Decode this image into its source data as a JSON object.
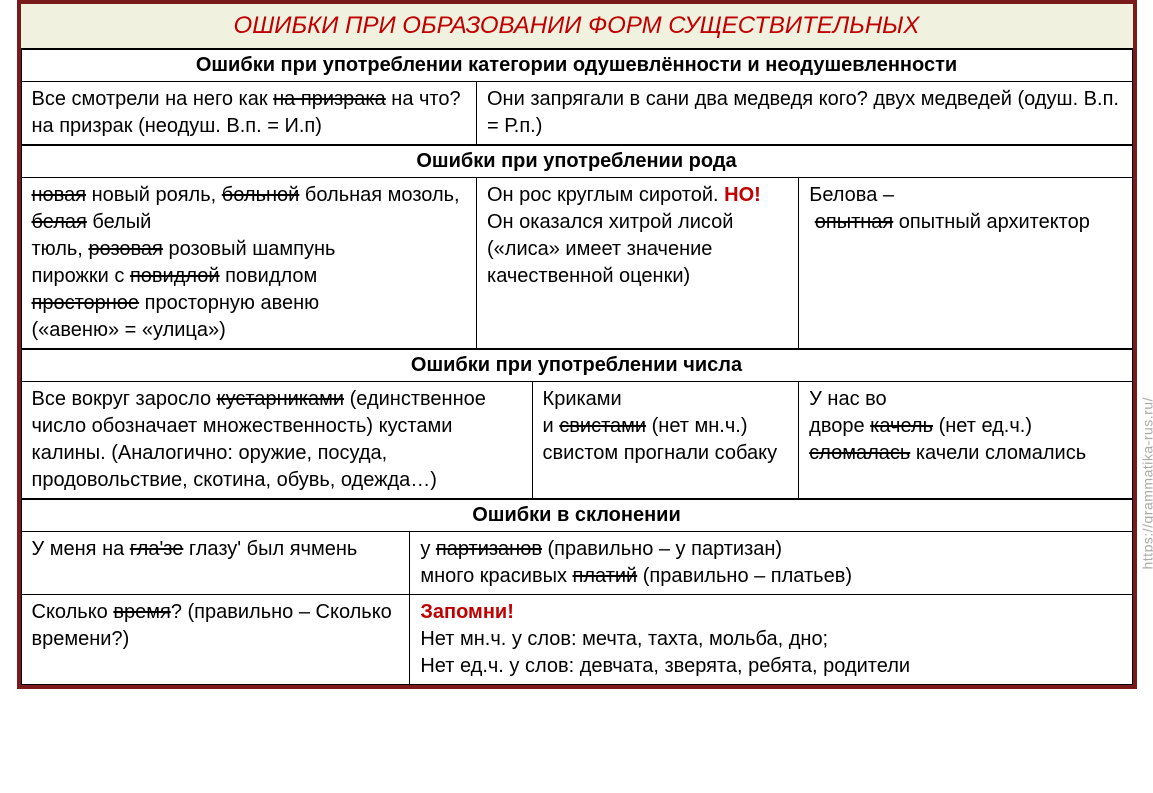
{
  "title": "ОШИБКИ ПРИ ОБРАЗОВАНИИ ФОРМ СУЩЕСТВИТЕЛЬНЫХ",
  "watermark": "https://grammatika-rus.ru/",
  "sections": {
    "s1": {
      "header": "Ошибки при употреблении категории одушевлённости и неодушевленности",
      "c1": "Все смотрели на него как <s>на призрака</s> на что? на призрак (неодуш. В.п. = И.п)",
      "c2": "Они запрягали в сани два медведя кого? двух медведей (одуш. В.п. = Р.п.)"
    },
    "s2": {
      "header": "Ошибки при употреблении рода",
      "c1": "<s>новая</s> новый рояль, <s>больной</s> больная мозоль, <s>белая</s> белый<br>тюль, <s>розовая</s> розовый шампунь<br>пирожки с <s>повидлой</s> повидлом<br><s>просторное</s> просторную авеню<br>(«авеню» = «улица»)",
      "c2": "Он рос круглым сиротой. <span class=\"red\">НО!</span> Он оказался хитрой лисой («лиса» имеет значение качественной оценки)",
      "c3": "Белова –<br>&nbsp;<s>опытная</s> опытный архитектор"
    },
    "s3": {
      "header": "Ошибки при употреблении числа",
      "c1": "Все вокруг заросло <s>кустарниками</s> (единственное число обозначает множественность) кустами калины. (Аналогично: оружие, посуда, продовольствие, скотина, обувь, одежда…)",
      "c2": "Криками<br>и <s>свистами</s> (нет мн.ч.) свистом прогнали собаку",
      "c3": "У нас во<br>дворе <s>качель</s> (нет ед.ч.) <s>сломалась</s> качели сломались"
    },
    "s4": {
      "header": "Ошибки в склонении",
      "r1c1": "У меня на <s>гла'зе</s> глазу' был ячмень",
      "r1c2": "у <s>партизанов</s> (правильно – у партизан)<br>много красивых <s>платий</s> (правильно – платьев)",
      "r2c1": "Сколько <s>время</s>? (правильно – Сколько времени?)",
      "r2c2": "<span class=\"red\">Запомни!</span><br>Нет мн.ч. у слов: мечта, тахта, мольба, дно;<br>Нет ед.ч. у слов: девчата, зверята, ребята, родители"
    }
  },
  "style": {
    "border_color": "#7a1a1a",
    "title_bg": "#f1f1e0",
    "title_color": "#c00000",
    "accent_color": "#c00000",
    "cell_border": "#000000",
    "font_family": "Arial",
    "title_fontsize": 24,
    "header_fontsize": 20,
    "cell_fontsize": 20,
    "watermark_color": "#aaaaaa"
  }
}
